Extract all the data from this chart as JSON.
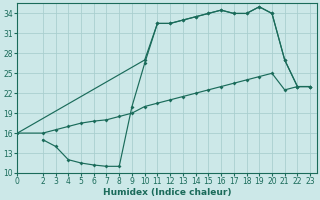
{
  "bg_color": "#cce8e8",
  "grid_color": "#aacfcf",
  "line_color": "#1a6b5a",
  "xlabel": "Humidex (Indice chaleur)",
  "xlim": [
    0,
    23.5
  ],
  "ylim": [
    10,
    35.5
  ],
  "yticks": [
    10,
    13,
    16,
    19,
    22,
    25,
    28,
    31,
    34
  ],
  "xticks": [
    0,
    2,
    3,
    4,
    5,
    6,
    7,
    8,
    9,
    10,
    11,
    12,
    13,
    14,
    15,
    16,
    17,
    18,
    19,
    20,
    21,
    22,
    23
  ],
  "line1_x": [
    2,
    3,
    4,
    5,
    6,
    7,
    8,
    9,
    10,
    11,
    12,
    13,
    14,
    15,
    16,
    17,
    18,
    19,
    20,
    21,
    22,
    23
  ],
  "line1_y": [
    15,
    14,
    12,
    11.5,
    11.2,
    11,
    11,
    20,
    26.5,
    32.5,
    32.5,
    33,
    33.5,
    34,
    34.5,
    34,
    34,
    35,
    34,
    27,
    23,
    23
  ],
  "line2_x": [
    0,
    10,
    11,
    12,
    13,
    14,
    15,
    16,
    17,
    18,
    19,
    20,
    21,
    22,
    23
  ],
  "line2_y": [
    16,
    27,
    32.5,
    32.5,
    33,
    33.5,
    34,
    34.5,
    34,
    34,
    35,
    34,
    27,
    23,
    23
  ],
  "line3_x": [
    0,
    2,
    3,
    4,
    5,
    6,
    7,
    8,
    9,
    10,
    11,
    12,
    13,
    14,
    15,
    16,
    17,
    18,
    19,
    20,
    21,
    22,
    23
  ],
  "line3_y": [
    16,
    16,
    16.5,
    17,
    17.5,
    17.8,
    18,
    18.5,
    19,
    20,
    20.5,
    21,
    21.5,
    22,
    22.5,
    23,
    23.5,
    24,
    24.5,
    25,
    22.5,
    23,
    23
  ]
}
